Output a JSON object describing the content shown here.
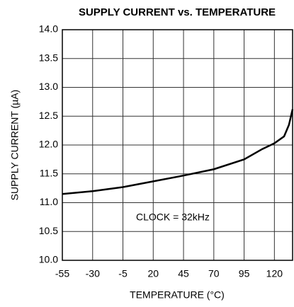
{
  "chart_data": {
    "type": "line",
    "title": "SUPPLY CURRENT vs. TEMPERATURE",
    "xlabel": "TEMPERATURE (°C)",
    "ylabel": "SUPPLY CURRENT (µA)",
    "annotation": "CLOCK = 32kHz",
    "x": [
      -55,
      -30,
      -5,
      20,
      45,
      70,
      95,
      110,
      120,
      128,
      132,
      135
    ],
    "series": [
      {
        "name": "CLOCK = 32kHz",
        "color": "#000000",
        "values": [
          11.15,
          11.2,
          11.27,
          11.37,
          11.47,
          11.58,
          11.75,
          11.93,
          12.03,
          12.15,
          12.35,
          12.62
        ]
      }
    ],
    "xlim": [
      -55,
      135
    ],
    "xticks": [
      -55,
      -30,
      -5,
      20,
      45,
      70,
      95,
      120
    ],
    "ylim": [
      10,
      14
    ],
    "yticks": [
      {
        "value": 10,
        "label": "10.0"
      },
      10.5,
      {
        "value": 11,
        "label": "11.0"
      },
      11.5,
      {
        "value": 12,
        "label": "12.0"
      },
      12.5,
      {
        "value": 13,
        "label": "13.0"
      },
      13.5,
      {
        "value": 14,
        "label": "14.0"
      }
    ],
    "grid": true
  }
}
